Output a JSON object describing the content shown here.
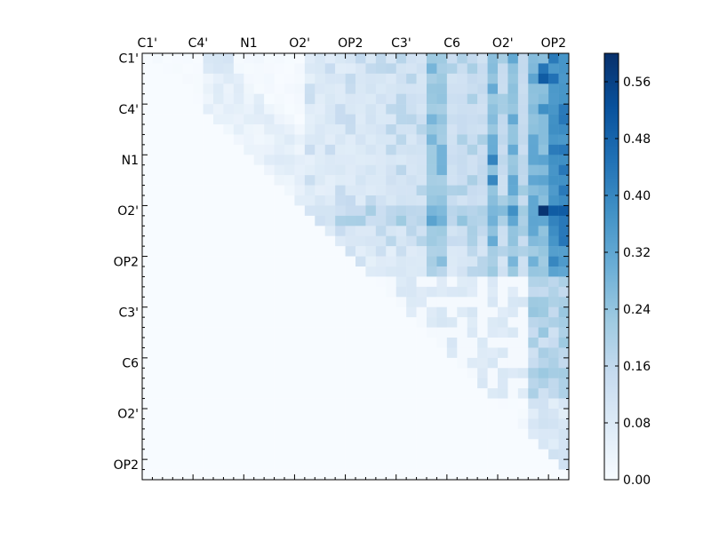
{
  "chart_data": {
    "type": "heatmap",
    "title": "",
    "xlabel": "",
    "ylabel": "",
    "n": 42,
    "x_tick_labels": [
      "C1'",
      "C4'",
      "N1",
      "O2'",
      "OP2",
      "C3'",
      "C6",
      "O2'",
      "OP2"
    ],
    "x_tick_index": [
      0,
      5,
      10,
      15,
      20,
      25,
      30,
      35,
      40
    ],
    "y_tick_labels": [
      "C1'",
      "C4'",
      "N1",
      "O2'",
      "OP2",
      "C3'",
      "C6",
      "O2'",
      "OP2"
    ],
    "y_tick_index": [
      0,
      5,
      10,
      15,
      20,
      25,
      30,
      35,
      40
    ],
    "x_axis_position": "top",
    "colormap": "Blues",
    "color_range": [
      0.0,
      0.6
    ],
    "colorbar_ticks": [
      "0.00",
      "0.08",
      "0.16",
      "0.24",
      "0.32",
      "0.40",
      "0.48",
      "0.56"
    ],
    "colorbar_tick_values": [
      0.0,
      0.08,
      0.16,
      0.24,
      0.32,
      0.4,
      0.48,
      0.56
    ],
    "colors": {
      "low": "#f7fbff",
      "mid": "#9ecae1",
      "high": "#08306b"
    },
    "hot_rows": [
      0,
      1,
      2,
      3,
      4,
      5,
      6,
      7,
      8,
      9,
      10,
      11,
      12,
      13,
      14,
      15,
      16,
      17,
      18,
      19,
      20,
      21
    ],
    "hot_cols": [
      28,
      29,
      34,
      36,
      38,
      40,
      41
    ],
    "peak_cells": [
      {
        "row": 15,
        "col": 39,
        "value": 0.59
      },
      {
        "row": 15,
        "col": 40,
        "value": 0.5
      },
      {
        "row": 15,
        "col": 41,
        "value": 0.5
      },
      {
        "row": 2,
        "col": 39,
        "value": 0.5
      },
      {
        "row": 2,
        "col": 40,
        "value": 0.45
      },
      {
        "row": 1,
        "col": 39,
        "value": 0.44
      },
      {
        "row": 5,
        "col": 39,
        "value": 0.38
      },
      {
        "row": 10,
        "col": 34,
        "value": 0.41
      },
      {
        "row": 12,
        "col": 34,
        "value": 0.4
      },
      {
        "row": 15,
        "col": 36,
        "value": 0.38
      }
    ]
  }
}
